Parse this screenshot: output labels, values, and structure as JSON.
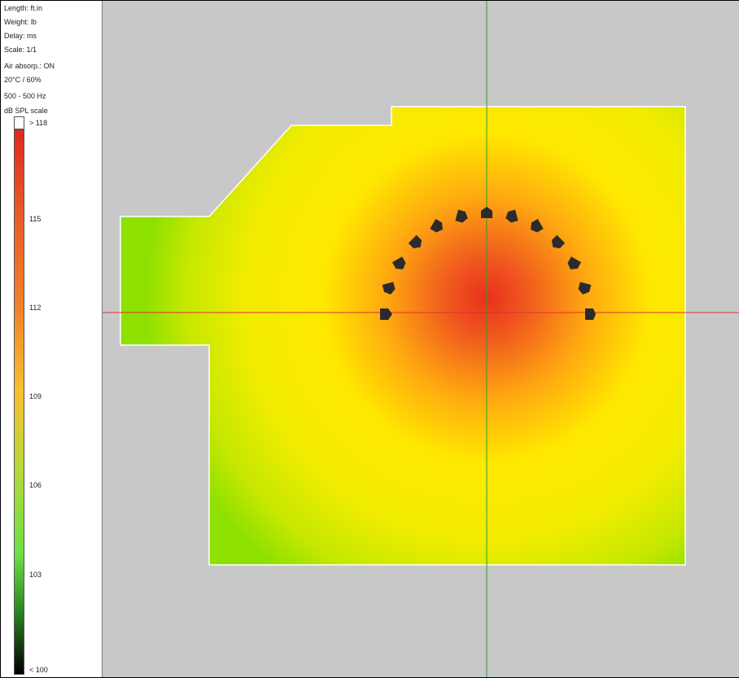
{
  "settings": {
    "length": "Length: ft.in",
    "weight": "Weight: lb",
    "delay": "Delay: ms",
    "scale": "Scale: 1/1",
    "air_absorption": "Air absorp.: ON",
    "conditions": "20°C / 60%",
    "frequency": "500 - 500 Hz"
  },
  "spl_scale": {
    "title": "dB SPL scale",
    "max_label": "> 118",
    "min_label": "< 100",
    "ticks": [
      "115",
      "112",
      "109",
      "106",
      "103"
    ]
  },
  "colors": {
    "background": "#c8c8c8",
    "hot": "#e8301c",
    "mid": "#ffe800",
    "cool": "#8ee000",
    "x_axis": "#e03030",
    "y_axis": "#1e9a1e",
    "speaker": "#2b2b2b"
  },
  "speakers": {
    "count": 13,
    "arrangement": "semicircle arc"
  }
}
